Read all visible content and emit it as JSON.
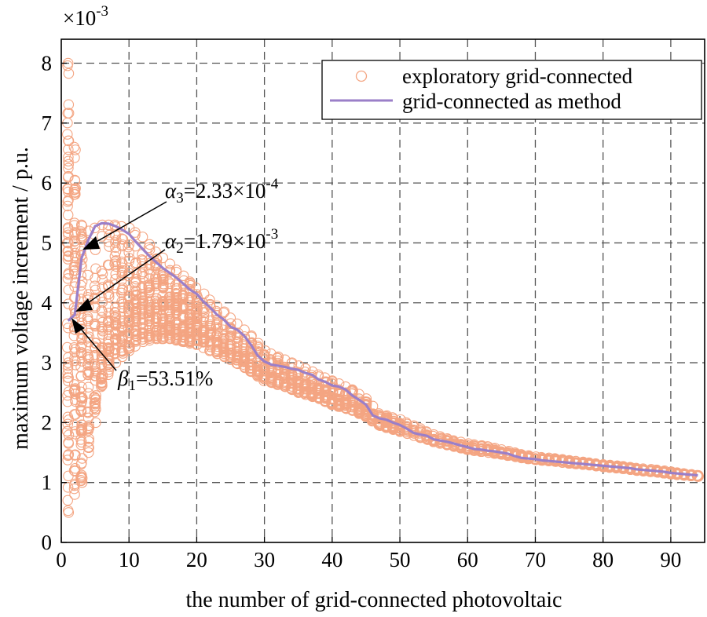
{
  "chart_data": {
    "type": "scatter",
    "title": "",
    "xlabel": "the number of grid-connected photovoltaic",
    "ylabel": "maximum voltage increment / p.u.",
    "y_scale_label": "×10",
    "y_scale_exp": "-3",
    "xlim": [
      0,
      95
    ],
    "ylim": [
      0,
      8.4
    ],
    "xticks": [
      0,
      10,
      20,
      30,
      40,
      50,
      60,
      70,
      80,
      90
    ],
    "yticks": [
      0,
      1,
      2,
      3,
      4,
      5,
      6,
      7,
      8
    ],
    "grid": true,
    "legend_position": "top-right",
    "series": [
      {
        "name": "exploratory grid-connected",
        "kind": "scatter",
        "marker": "open-circle",
        "color": "#F4A582",
        "band": {
          "x": [
            1,
            2,
            3,
            4,
            5,
            6,
            7,
            8,
            10,
            12,
            14,
            16,
            18,
            20,
            22,
            25,
            28,
            30,
            33,
            35,
            38,
            40,
            43,
            45,
            47,
            50,
            53,
            55,
            58,
            60,
            63,
            65,
            68,
            70,
            73,
            75,
            78,
            80,
            83,
            85,
            88,
            90,
            92,
            94
          ],
          "upper": [
            8.0,
            6.6,
            5.3,
            5.2,
            5.25,
            5.3,
            5.3,
            5.3,
            5.25,
            5.1,
            4.85,
            4.65,
            4.45,
            4.25,
            4.05,
            3.75,
            3.45,
            3.2,
            3.05,
            2.95,
            2.8,
            2.7,
            2.55,
            2.4,
            2.15,
            2.05,
            1.9,
            1.8,
            1.7,
            1.65,
            1.6,
            1.55,
            1.47,
            1.43,
            1.4,
            1.37,
            1.33,
            1.3,
            1.27,
            1.24,
            1.21,
            1.18,
            1.15,
            1.12
          ],
          "lower": [
            0.5,
            0.8,
            1.0,
            1.5,
            2.0,
            2.6,
            2.8,
            3.0,
            3.2,
            3.35,
            3.4,
            3.4,
            3.35,
            3.3,
            3.2,
            3.05,
            2.85,
            2.7,
            2.6,
            2.5,
            2.4,
            2.3,
            2.2,
            2.1,
            1.95,
            1.85,
            1.75,
            1.68,
            1.6,
            1.55,
            1.5,
            1.47,
            1.41,
            1.38,
            1.35,
            1.32,
            1.29,
            1.26,
            1.23,
            1.2,
            1.17,
            1.14,
            1.12,
            1.1
          ]
        }
      },
      {
        "name": "grid-connected as method",
        "kind": "line",
        "color": "#9B7FC8",
        "x": [
          1,
          2,
          3,
          4,
          5,
          6,
          7,
          8,
          9,
          10,
          11,
          12,
          13,
          14,
          15,
          16,
          17,
          18,
          19,
          20,
          21,
          22,
          23,
          24,
          25,
          26,
          27,
          28,
          29,
          30,
          31,
          32,
          33,
          34,
          35,
          36,
          37,
          38,
          39,
          40,
          41,
          42,
          43,
          44,
          45,
          46,
          47,
          48,
          49,
          50,
          51,
          52,
          53,
          54,
          55,
          56,
          57,
          58,
          59,
          60,
          61,
          62,
          63,
          64,
          65,
          66,
          67,
          68,
          69,
          70,
          71,
          72,
          73,
          74,
          75,
          76,
          77,
          78,
          79,
          80,
          81,
          82,
          83,
          84,
          85,
          86,
          87,
          88,
          89,
          90,
          91,
          92,
          93,
          94
        ],
        "y": [
          3.7,
          3.8,
          4.75,
          5.05,
          5.28,
          5.33,
          5.32,
          5.28,
          5.22,
          5.15,
          5.02,
          4.9,
          4.78,
          4.68,
          4.58,
          4.5,
          4.42,
          4.32,
          4.22,
          4.15,
          4.02,
          3.92,
          3.8,
          3.72,
          3.6,
          3.55,
          3.45,
          3.3,
          3.12,
          3.02,
          2.97,
          2.95,
          2.93,
          2.9,
          2.88,
          2.83,
          2.8,
          2.72,
          2.68,
          2.62,
          2.6,
          2.55,
          2.45,
          2.38,
          2.3,
          2.12,
          2.07,
          2.05,
          2.0,
          1.96,
          1.9,
          1.83,
          1.8,
          1.78,
          1.72,
          1.7,
          1.68,
          1.65,
          1.62,
          1.59,
          1.56,
          1.55,
          1.53,
          1.52,
          1.5,
          1.48,
          1.44,
          1.41,
          1.4,
          1.39,
          1.37,
          1.36,
          1.35,
          1.34,
          1.33,
          1.32,
          1.31,
          1.3,
          1.29,
          1.28,
          1.27,
          1.26,
          1.25,
          1.24,
          1.22,
          1.21,
          1.2,
          1.19,
          1.18,
          1.16,
          1.15,
          1.14,
          1.13,
          1.12
        ]
      }
    ],
    "annotations": [
      {
        "name": "alpha3",
        "symbol": "α",
        "sub": "3",
        "text": "=2.33×10",
        "sup": "-4",
        "point": [
          3,
          4.75
        ]
      },
      {
        "name": "alpha2",
        "symbol": "α",
        "sub": "2",
        "text": "=1.79×10",
        "sup": "-3",
        "point": [
          2,
          3.8
        ]
      },
      {
        "name": "beta1",
        "symbol": "β",
        "sub": "1",
        "text": "=53.51%",
        "sup": "",
        "point": [
          1,
          3.7
        ]
      }
    ]
  }
}
